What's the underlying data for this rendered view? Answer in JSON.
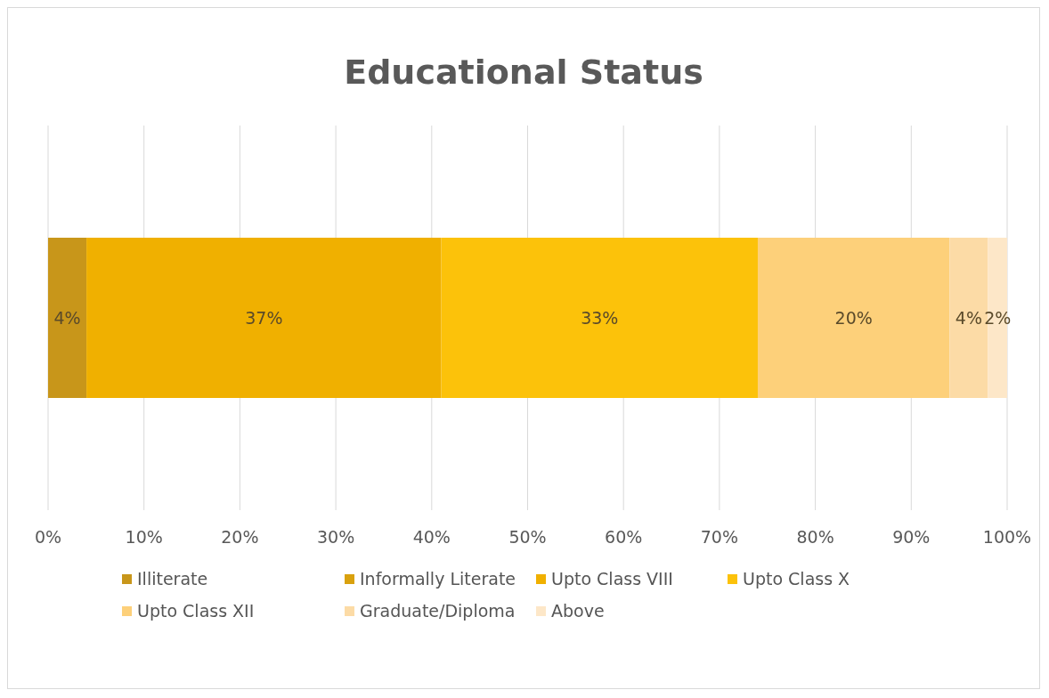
{
  "chart_data": {
    "type": "bar",
    "title": "Educational Status",
    "orientation": "horizontal",
    "stacked": true,
    "categories": [
      null
    ],
    "series": [
      {
        "name": "Illiterate",
        "color": "#c8961a",
        "values": [
          4
        ],
        "value_labels": [
          "4%"
        ]
      },
      {
        "name": "Informally Literate",
        "color": "#d9a10e",
        "values": [
          0
        ],
        "value_labels": [
          null
        ]
      },
      {
        "name": "Upto Class VIII",
        "color": "#f0b000",
        "values": [
          37
        ],
        "value_labels": [
          "37%"
        ]
      },
      {
        "name": "Upto Class X",
        "color": "#fcc20a",
        "values": [
          33
        ],
        "value_labels": [
          "33%"
        ]
      },
      {
        "name": "Upto Class XII",
        "color": "#fdd07a",
        "values": [
          20
        ],
        "value_labels": [
          "20%"
        ]
      },
      {
        "name": "Graduate/Diploma",
        "color": "#fcdba6",
        "values": [
          4
        ],
        "value_labels": [
          "4%"
        ]
      },
      {
        "name": "Above",
        "color": "#fde7c8",
        "values": [
          2
        ],
        "value_labels": [
          "2%"
        ]
      }
    ],
    "xlim": [
      0,
      100
    ],
    "xticks": [
      {
        "value": 0,
        "label": "0%"
      },
      {
        "value": 10,
        "label": "10%"
      },
      {
        "value": 20,
        "label": "20%"
      },
      {
        "value": 30,
        "label": "30%"
      },
      {
        "value": 40,
        "label": "40%"
      },
      {
        "value": 50,
        "label": "50%"
      },
      {
        "value": 60,
        "label": "60%"
      },
      {
        "value": 70,
        "label": "70%"
      },
      {
        "value": 80,
        "label": "80%"
      },
      {
        "value": 90,
        "label": "90%"
      },
      {
        "value": 100,
        "label": "100%"
      }
    ],
    "grid": "x",
    "legend": "bottom",
    "tick_labels": "x"
  }
}
